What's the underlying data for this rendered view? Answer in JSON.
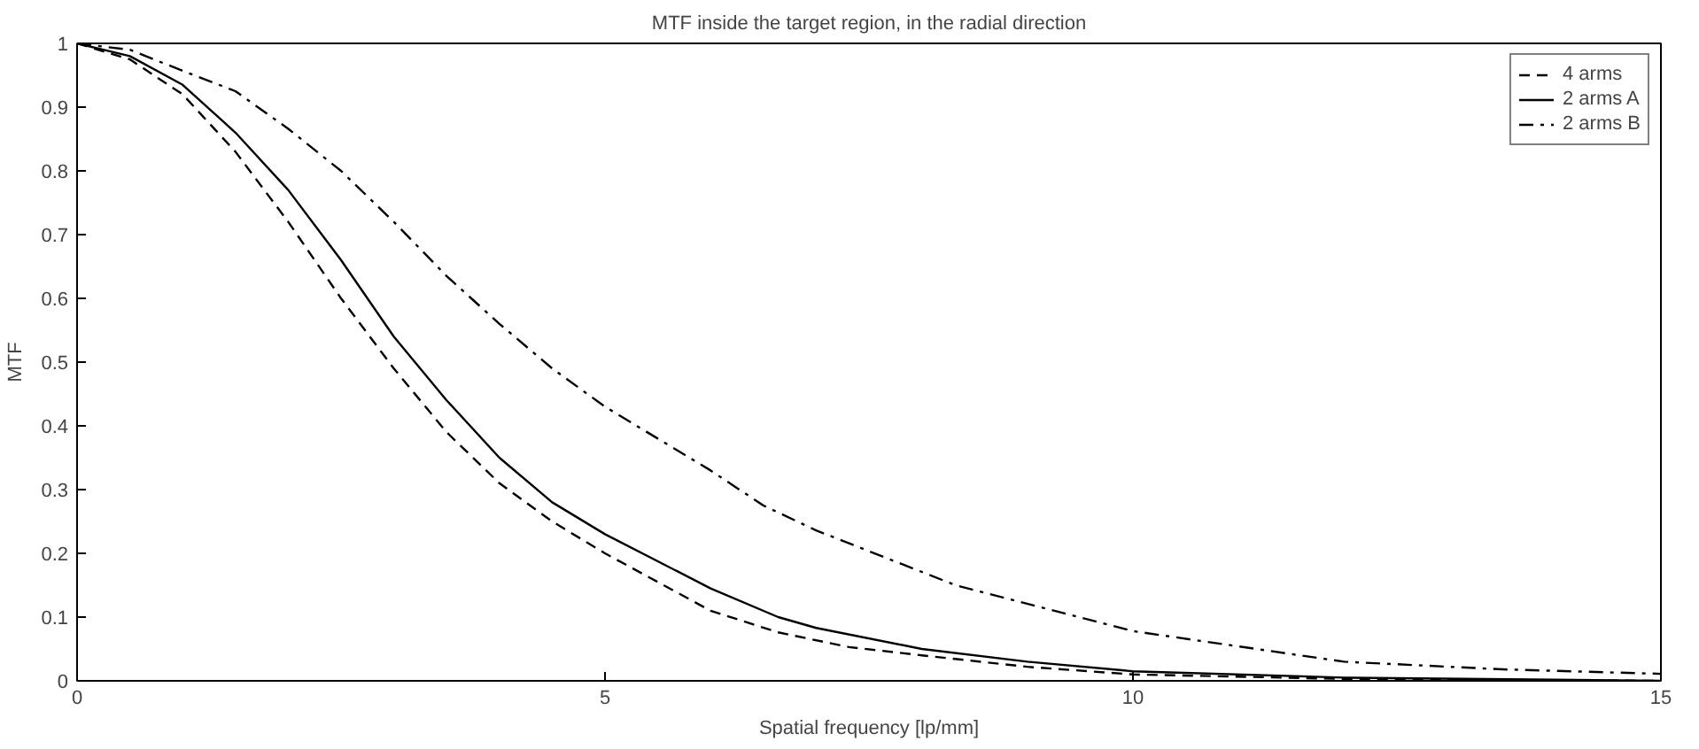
{
  "chart_data": {
    "type": "line",
    "title": "MTF inside the target region, in the radial direction",
    "xlabel": "Spatial frequency [lp/mm]",
    "ylabel": "MTF",
    "xlim": [
      0,
      15
    ],
    "ylim": [
      0,
      1
    ],
    "xticks": [
      0,
      5,
      10,
      15
    ],
    "yticks": [
      0,
      0.1,
      0.2,
      0.3,
      0.4,
      0.5,
      0.6,
      0.7,
      0.8,
      0.9,
      1
    ],
    "grid": false,
    "legend": "top right",
    "series": [
      {
        "name": "4 arms",
        "color": "#000000",
        "line_style": "dashed",
        "x": [
          0,
          0.5,
          1,
          1.5,
          2,
          2.5,
          3,
          3.5,
          4,
          4.5,
          5,
          6,
          6.64,
          7.31,
          8,
          9,
          10,
          12,
          15
        ],
        "values": [
          1,
          0.975,
          0.92,
          0.83,
          0.72,
          0.6,
          0.49,
          0.39,
          0.31,
          0.25,
          0.2,
          0.11,
          0.076,
          0.053,
          0.04,
          0.022,
          0.01,
          0.003,
          0
        ]
      },
      {
        "name": "2 arms A",
        "color": "#000000",
        "line_style": "solid",
        "x": [
          0,
          0.5,
          1,
          1.5,
          2,
          2.5,
          3,
          3.5,
          4,
          4.5,
          5,
          6,
          6.64,
          7,
          8,
          9,
          10,
          12,
          15
        ],
        "values": [
          1,
          0.98,
          0.935,
          0.86,
          0.77,
          0.66,
          0.54,
          0.44,
          0.35,
          0.28,
          0.23,
          0.145,
          0.1,
          0.083,
          0.05,
          0.03,
          0.015,
          0.005,
          0
        ]
      },
      {
        "name": "2 arms B",
        "color": "#000000",
        "line_style": "dashdot",
        "x": [
          0,
          0.5,
          1,
          1.5,
          2,
          2.5,
          3,
          3.5,
          4,
          4.5,
          5,
          5.5,
          6,
          6.5,
          7,
          8.32,
          10,
          12,
          13.5,
          15
        ],
        "values": [
          1,
          0.99,
          0.957,
          0.925,
          0.866,
          0.8,
          0.72,
          0.635,
          0.56,
          0.49,
          0.43,
          0.38,
          0.33,
          0.275,
          0.236,
          0.15,
          0.078,
          0.03,
          0.018,
          0.011
        ]
      }
    ]
  }
}
